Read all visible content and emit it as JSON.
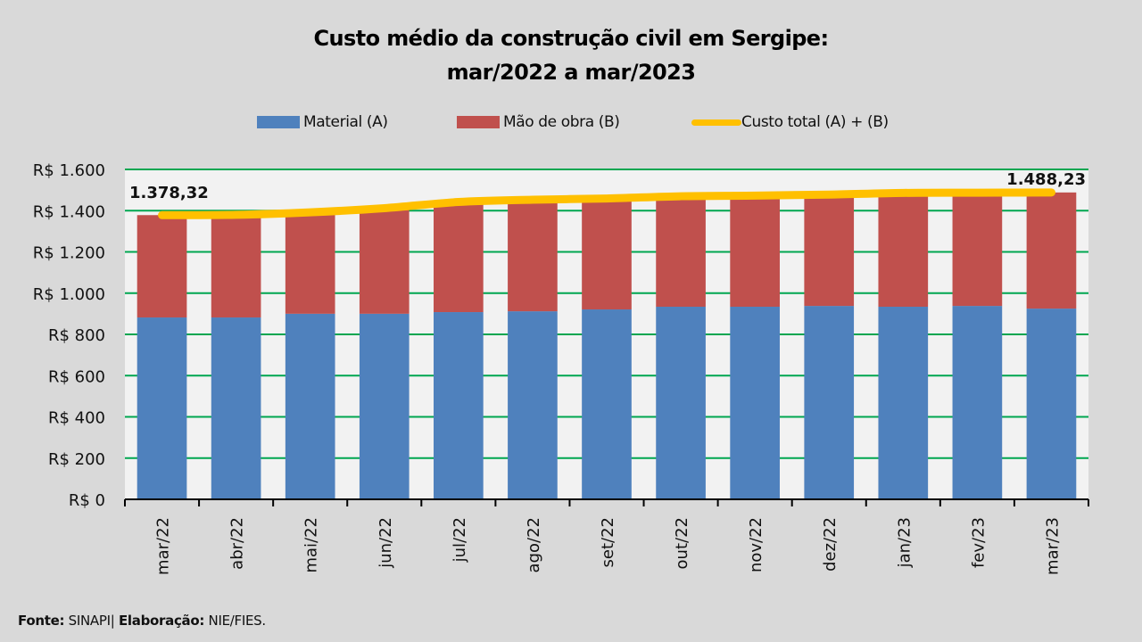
{
  "chart_data": {
    "type": "bar",
    "stacked": true,
    "title_lines": [
      "Custo médio da construção civil em Sergipe:",
      "mar/2022 a mar/2023"
    ],
    "categories": [
      "mar/22",
      "abr/22",
      "mai/22",
      "jun/22",
      "jul/22",
      "ago/22",
      "set/22",
      "out/22",
      "nov/22",
      "dez/22",
      "jan/23",
      "fev/23",
      "mar/23"
    ],
    "series": [
      {
        "name": "Material (A)",
        "type": "bar",
        "color": "#4f81bd",
        "values": [
          882,
          882,
          900,
          900,
          908,
          912,
          921,
          934,
          934,
          938,
          934,
          938,
          925
        ]
      },
      {
        "name": "Mão de obra (B)",
        "type": "bar",
        "color": "#c0504d",
        "values": [
          496.32,
          498,
          492,
          512,
          534,
          541,
          538,
          536,
          539,
          540,
          552,
          549,
          563.23
        ]
      },
      {
        "name": "Custo total (A) + (B)",
        "type": "line",
        "color": "#ffc000",
        "values": [
          1378.32,
          1380,
          1392,
          1412,
          1442,
          1453,
          1459,
          1470,
          1473,
          1478,
          1486,
          1487,
          1488.23
        ]
      }
    ],
    "data_labels": [
      {
        "category": "mar/22",
        "text": "1.378,32"
      },
      {
        "category": "mar/23",
        "text": "1.488,23"
      }
    ],
    "ylabel": "",
    "xlabel": "",
    "ylim": [
      0,
      1600
    ],
    "yticks": [
      0,
      200,
      400,
      600,
      800,
      1000,
      1200,
      1400,
      1600
    ],
    "ytick_labels": [
      "R$ 0",
      "R$ 200",
      "R$ 400",
      "R$ 600",
      "R$ 800",
      "R$ 1.000",
      "R$ 1.200",
      "R$ 1.400",
      "R$ 1.600"
    ],
    "grid": true,
    "grid_color": "#00a650",
    "legend_position": "top-center"
  },
  "footer": {
    "source_label": "Fonte:",
    "source_value": "SINAPI|",
    "author_label": "Elaboração:",
    "author_value": "NIE/FIES."
  }
}
